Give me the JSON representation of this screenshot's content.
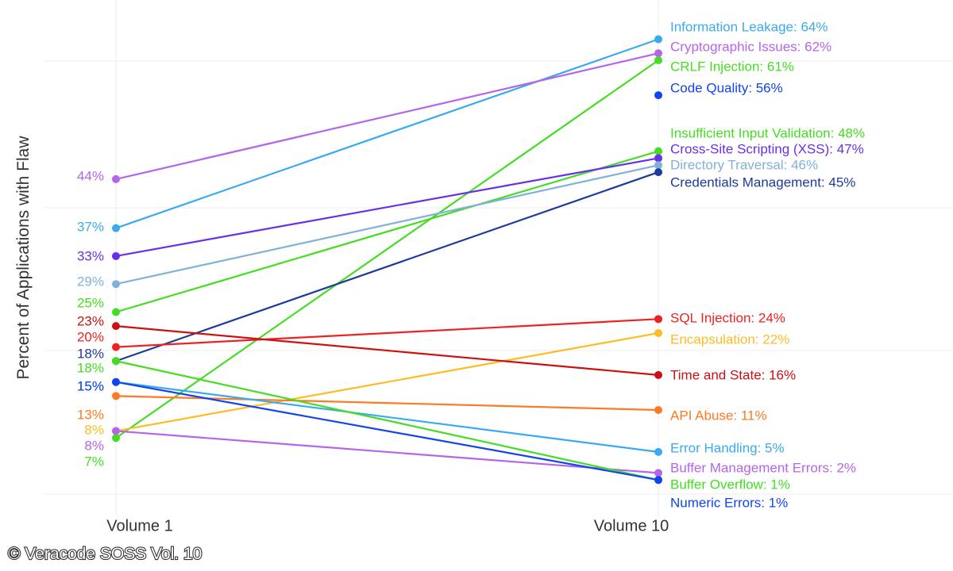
{
  "chart_data": {
    "type": "line",
    "categories": [
      "Volume 1",
      "Volume 10"
    ],
    "ylabel": "Percent of Applications with Flaw",
    "legend": "labels-at-right-end",
    "grid": true,
    "series": [
      {
        "name": "Information Leakage",
        "values": [
          37,
          64
        ],
        "start_label": "37%",
        "end_label": "Information Leakage: 64%",
        "color": "#3aaaf0"
      },
      {
        "name": "Cryptographic Issues",
        "values": [
          44,
          62
        ],
        "start_label": "44%",
        "end_label": "Cryptographic Issues: 62%",
        "color": "#b565ea"
      },
      {
        "name": "CRLF Injection",
        "values": [
          7,
          61
        ],
        "start_label": "7%",
        "end_label": "CRLF Injection: 61%",
        "color": "#44dd22"
      },
      {
        "name": "Code Quality",
        "values": [
          null,
          56
        ],
        "start_label": "",
        "end_label": "Code Quality: 56%",
        "color": "#1144ee"
      },
      {
        "name": "Insufficient Input Validation",
        "values": [
          25,
          48
        ],
        "start_label": "25%",
        "end_label": "Insufficient Input Validation: 48%",
        "color": "#44dd22"
      },
      {
        "name": "Cross-Site Scripting (XSS)",
        "values": [
          33,
          47
        ],
        "start_label": "33%",
        "end_label": "Cross-Site Scripting (XSS): 47%",
        "color": "#6a2fe8"
      },
      {
        "name": "Directory Traversal",
        "values": [
          29,
          46
        ],
        "start_label": "29%",
        "end_label": "Directory Traversal: 46%",
        "color": "#7fb2d8"
      },
      {
        "name": "Credentials Management",
        "values": [
          18,
          45
        ],
        "start_label": "18%",
        "end_label": "Credentials Management: 45%",
        "color": "#1e3a9a"
      },
      {
        "name": "SQL Injection",
        "values": [
          20,
          24
        ],
        "start_label": "20%",
        "end_label": "SQL Injection: 24%",
        "color": "#ee2222"
      },
      {
        "name": "Encapsulation",
        "values": [
          8,
          22
        ],
        "start_label": "8%",
        "end_label": "Encapsulation: 22%",
        "color": "#ffbb22"
      },
      {
        "name": "Time and State",
        "values": [
          23,
          16
        ],
        "start_label": "23%",
        "end_label": "Time and State: 16%",
        "color": "#cc1111"
      },
      {
        "name": "API Abuse",
        "values": [
          13,
          11
        ],
        "start_label": "13%",
        "end_label": "API Abuse: 11%",
        "color": "#ff7a22"
      },
      {
        "name": "Error Handling",
        "values": [
          15,
          5
        ],
        "start_label": "15%",
        "end_label": "Error Handling: 5%",
        "color": "#3aaaf0"
      },
      {
        "name": "Buffer Management Errors",
        "values": [
          8,
          2
        ],
        "start_label": "8%",
        "end_label": "Buffer Management Errors: 2%",
        "color": "#b565ea"
      },
      {
        "name": "Buffer Overflow",
        "values": [
          18,
          1
        ],
        "start_label": "18%",
        "end_label": "Buffer Overflow: 1%",
        "color": "#44dd22"
      },
      {
        "name": "Numeric Errors",
        "values": [
          15,
          1
        ],
        "start_label": "15%",
        "end_label": "Numeric Errors: 1%",
        "color": "#1144ee"
      }
    ]
  },
  "credit": "© Veracode SOSS Vol. 10"
}
